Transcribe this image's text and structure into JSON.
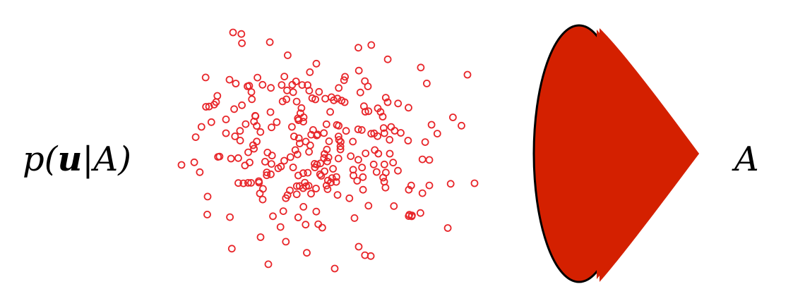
{
  "left_label": {
    "p": "p(",
    "u": "u",
    "bar": "|",
    "given": "A)"
  },
  "right_label": "A",
  "colors": {
    "points": "#e8262a",
    "shape_fill": "#d42000",
    "shape_stroke": "#000000"
  },
  "icons": {
    "scatter": "point-cloud-icon",
    "shape": "cone-ellipse-shape-icon"
  }
}
